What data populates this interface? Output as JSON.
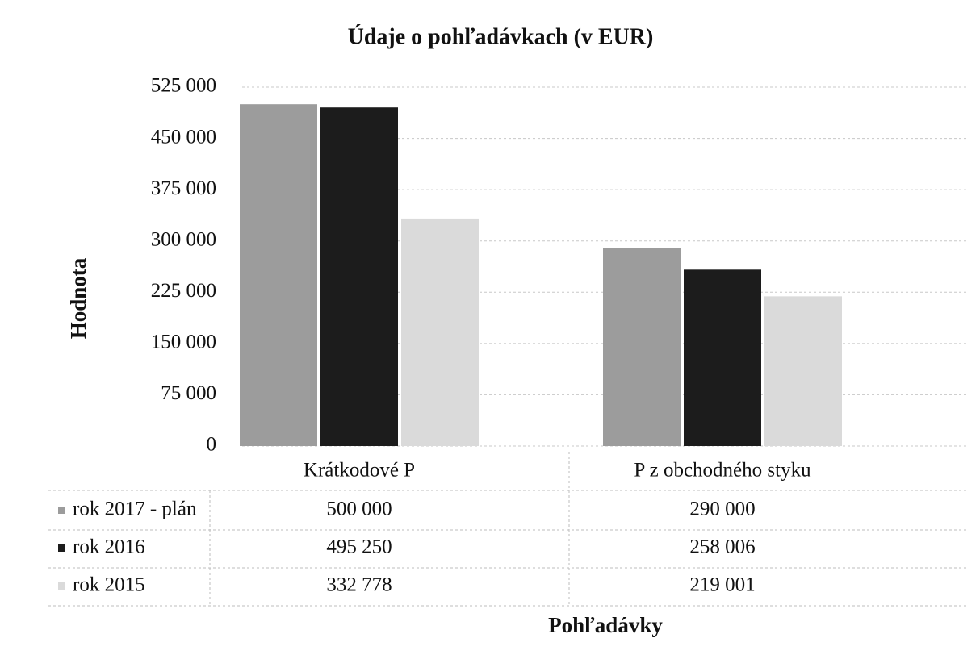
{
  "chart_data": {
    "type": "bar",
    "title": "Údaje o pohľadávkach (v EUR)",
    "y_label": "Hodnota",
    "x_label": "Pohľadávky",
    "categories": [
      "Krátkodové P",
      "P z obchodného styku"
    ],
    "series": [
      {
        "name": "rok 2017 - plán",
        "color": "#9c9c9c",
        "values": [
          500000,
          290000
        ],
        "value_labels": [
          "500 000",
          "290 000"
        ]
      },
      {
        "name": "rok 2016",
        "color": "#1c1c1c",
        "values": [
          495250,
          258006
        ],
        "value_labels": [
          "495 250",
          "258 006"
        ]
      },
      {
        "name": "rok 2015",
        "color": "#dadada",
        "values": [
          332778,
          219001
        ],
        "value_labels": [
          "332 778",
          "219 001"
        ]
      }
    ],
    "ylim": [
      0,
      525000
    ],
    "yticks": [
      0,
      {
        "value": 75000,
        "label": "75 000"
      },
      {
        "value": 150000,
        "label": "150 000"
      },
      {
        "value": 225000,
        "label": "225 000"
      },
      {
        "value": 300000,
        "label": "300 000"
      },
      {
        "value": 375000,
        "label": "375 000"
      },
      {
        "value": 450000,
        "label": "450 000"
      },
      {
        "value": 525000,
        "label": "525 000"
      }
    ],
    "grid": true
  }
}
